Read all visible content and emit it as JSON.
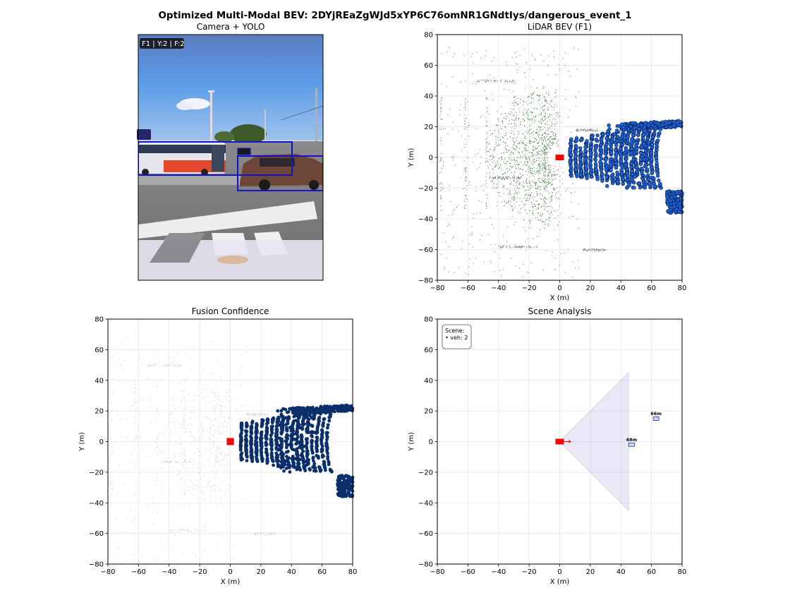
{
  "figure": {
    "title": "Optimized Multi-Modal BEV: 2DYjREaZgWJd5xYP6C76omNR1GNdtIys/dangerous_event_1"
  },
  "camera_panel": {
    "title": "Camera + YOLO",
    "overlay_text": "F1 | Y:2 | F:2"
  },
  "chart_data": [
    {
      "type": "scatter",
      "title": "LiDAR BEV (F1)",
      "xlabel": "X (m)",
      "ylabel": "Y (m)",
      "xlim": [
        -80,
        80
      ],
      "ylim": [
        -80,
        80
      ],
      "xticks": [
        -80,
        -60,
        -40,
        -20,
        0,
        20,
        40,
        60,
        80
      ],
      "yticks": [
        -80,
        -60,
        -40,
        -20,
        0,
        20,
        40,
        60,
        80
      ],
      "grid": true,
      "ego": {
        "x": 0,
        "y": 0,
        "color": "#ff0000"
      },
      "colors": {
        "points_far": "#808080",
        "points_ground": "#228b22",
        "points_near": "#1e64dc"
      }
    },
    {
      "type": "scatter",
      "title": "Fusion Confidence",
      "xlabel": "X (m)",
      "ylabel": "Y (m)",
      "xlim": [
        -80,
        80
      ],
      "ylim": [
        -80,
        80
      ],
      "xticks": [
        -80,
        -60,
        -40,
        -20,
        0,
        20,
        40,
        60,
        80
      ],
      "yticks": [
        -80,
        -60,
        -40,
        -20,
        0,
        20,
        40,
        60,
        80
      ],
      "grid": true,
      "ego": {
        "x": 0,
        "y": 0,
        "color": "#ff0000"
      },
      "colors": {
        "points_far": "#c8c8c8",
        "points_near": "#0b2f6b"
      }
    },
    {
      "type": "scatter",
      "title": "Scene Analysis",
      "xlabel": "X (m)",
      "ylabel": "Y (m)",
      "xlim": [
        -80,
        80
      ],
      "ylim": [
        -80,
        80
      ],
      "xticks": [
        -80,
        -60,
        -40,
        -20,
        0,
        20,
        40,
        60,
        80
      ],
      "yticks": [
        -80,
        -60,
        -40,
        -20,
        0,
        20,
        40,
        60,
        80
      ],
      "grid": true,
      "legend_text": [
        "Scene:",
        "• veh: 2"
      ],
      "ego": {
        "x": 0,
        "y": 0,
        "color": "#ff0000"
      },
      "fov": {
        "apex": [
          0,
          0
        ],
        "ends": [
          [
            45,
            45
          ],
          [
            45,
            -45
          ]
        ],
        "color": "#9e96d4"
      },
      "vehicles": [
        {
          "x": 47,
          "y": -2,
          "label": "48m"
        },
        {
          "x": 63,
          "y": 15,
          "label": "66m"
        }
      ]
    }
  ]
}
